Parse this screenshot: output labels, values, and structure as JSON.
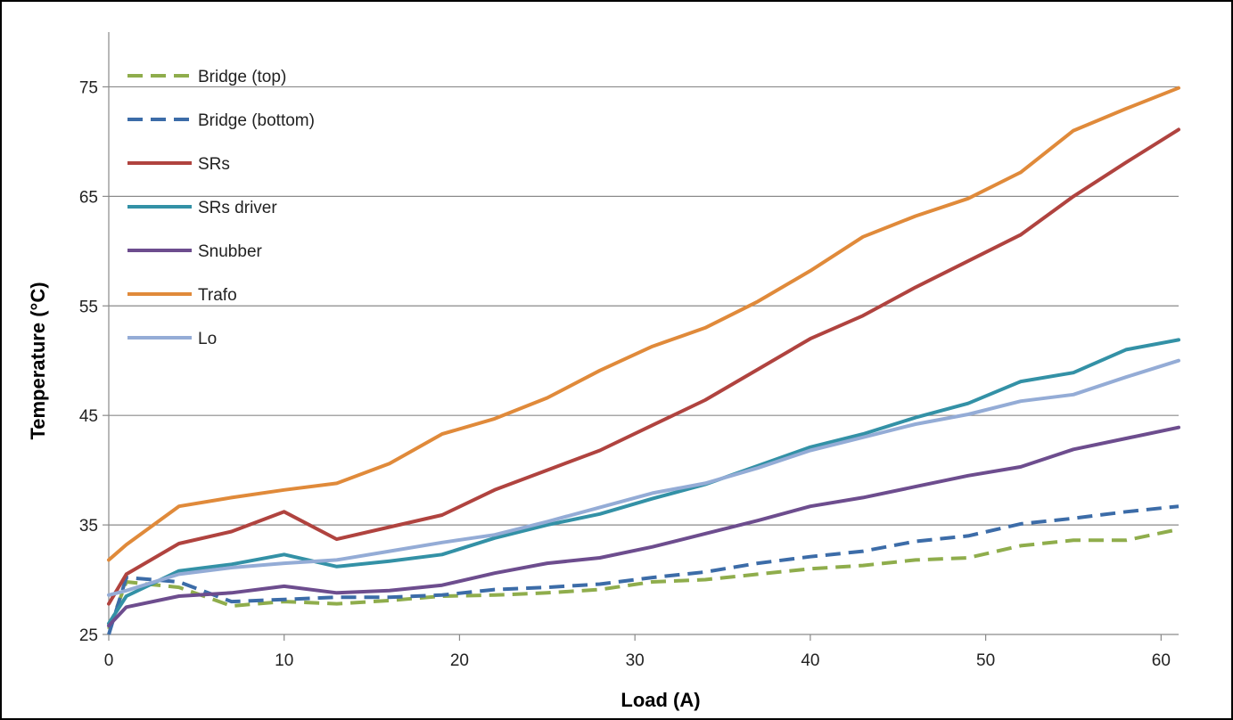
{
  "chart_data": {
    "type": "line",
    "title": "",
    "xlabel": "Load (A)",
    "ylabel": "Temperature (°C)",
    "xlim": [
      0,
      61
    ],
    "ylim": [
      25,
      80
    ],
    "x_ticks": [
      0,
      10,
      20,
      30,
      40,
      50,
      60
    ],
    "y_ticks": [
      25,
      35,
      45,
      55,
      65,
      75
    ],
    "grid": "horizontal",
    "legend_position": "top-left",
    "series": [
      {
        "name": "Bridge (top)",
        "color": "#8fad4c",
        "dash": true,
        "x": [
          0,
          1,
          4,
          7,
          10,
          13,
          16,
          19,
          22,
          25,
          28,
          31,
          34,
          37,
          40,
          43,
          46,
          49,
          52,
          55,
          58,
          61
        ],
        "y": [
          25.5,
          29.8,
          29.3,
          27.6,
          28.0,
          27.8,
          28.1,
          28.5,
          28.6,
          28.8,
          29.1,
          29.8,
          30.0,
          30.5,
          31.0,
          31.3,
          31.8,
          32.0,
          33.1,
          33.6,
          33.6,
          34.6
        ]
      },
      {
        "name": "Bridge (bottom)",
        "color": "#3c6ca8",
        "dash": true,
        "x": [
          0,
          1,
          4,
          7,
          10,
          13,
          16,
          19,
          22,
          25,
          28,
          31,
          34,
          37,
          40,
          43,
          46,
          49,
          52,
          55,
          58,
          61
        ],
        "y": [
          25.0,
          30.2,
          29.8,
          28.0,
          28.2,
          28.4,
          28.4,
          28.6,
          29.1,
          29.3,
          29.6,
          30.2,
          30.7,
          31.5,
          32.1,
          32.6,
          33.5,
          34.0,
          35.1,
          35.6,
          36.2,
          36.7
        ]
      },
      {
        "name": "SRs",
        "color": "#b0433f",
        "x": [
          0,
          1,
          4,
          7,
          10,
          13,
          16,
          19,
          22,
          25,
          28,
          31,
          34,
          37,
          40,
          43,
          46,
          49,
          52,
          55,
          58,
          61
        ],
        "y": [
          27.8,
          30.5,
          33.3,
          34.4,
          36.2,
          33.7,
          34.8,
          35.9,
          38.2,
          40.0,
          41.8,
          44.1,
          46.4,
          49.2,
          52.0,
          54.1,
          56.7,
          59.1,
          61.5,
          65.0,
          68.1,
          71.1
        ]
      },
      {
        "name": "SRs driver",
        "color": "#3391a6",
        "x": [
          0,
          1,
          4,
          7,
          10,
          13,
          16,
          19,
          22,
          25,
          28,
          31,
          34,
          37,
          40,
          43,
          46,
          49,
          52,
          55,
          58,
          61
        ],
        "y": [
          26.0,
          28.5,
          30.8,
          31.4,
          32.3,
          31.2,
          31.7,
          32.3,
          33.8,
          35.0,
          36.0,
          37.4,
          38.7,
          40.4,
          42.1,
          43.3,
          44.8,
          46.1,
          48.1,
          48.9,
          51.0,
          51.9
        ]
      },
      {
        "name": "Snubber",
        "color": "#6d4d8e",
        "x": [
          0,
          1,
          4,
          7,
          10,
          13,
          16,
          19,
          22,
          25,
          28,
          31,
          34,
          37,
          40,
          43,
          46,
          49,
          52,
          55,
          58,
          61
        ],
        "y": [
          25.8,
          27.5,
          28.5,
          28.8,
          29.4,
          28.8,
          29.0,
          29.5,
          30.6,
          31.5,
          32.0,
          33.0,
          34.2,
          35.4,
          36.7,
          37.5,
          38.5,
          39.5,
          40.3,
          41.9,
          42.9,
          43.9
        ]
      },
      {
        "name": "Trafo",
        "color": "#e08a3a",
        "x": [
          0,
          1,
          4,
          7,
          10,
          13,
          16,
          19,
          22,
          25,
          28,
          31,
          34,
          37,
          40,
          43,
          46,
          49,
          52,
          55,
          58,
          61
        ],
        "y": [
          31.8,
          33.2,
          36.7,
          37.5,
          38.2,
          38.8,
          40.6,
          43.3,
          44.7,
          46.6,
          49.1,
          51.3,
          53.0,
          55.4,
          58.2,
          61.3,
          63.2,
          64.8,
          67.2,
          71.0,
          73.0,
          74.9
        ]
      },
      {
        "name": "Lo",
        "color": "#94acd6",
        "x": [
          0,
          1,
          4,
          7,
          10,
          13,
          16,
          19,
          22,
          25,
          28,
          31,
          34,
          37,
          40,
          43,
          46,
          49,
          52,
          55,
          58,
          61
        ],
        "y": [
          28.6,
          29.0,
          30.5,
          31.1,
          31.5,
          31.8,
          32.6,
          33.4,
          34.1,
          35.3,
          36.6,
          37.9,
          38.8,
          40.2,
          41.8,
          43.0,
          44.2,
          45.1,
          46.3,
          46.9,
          48.5,
          50.0
        ]
      }
    ]
  }
}
